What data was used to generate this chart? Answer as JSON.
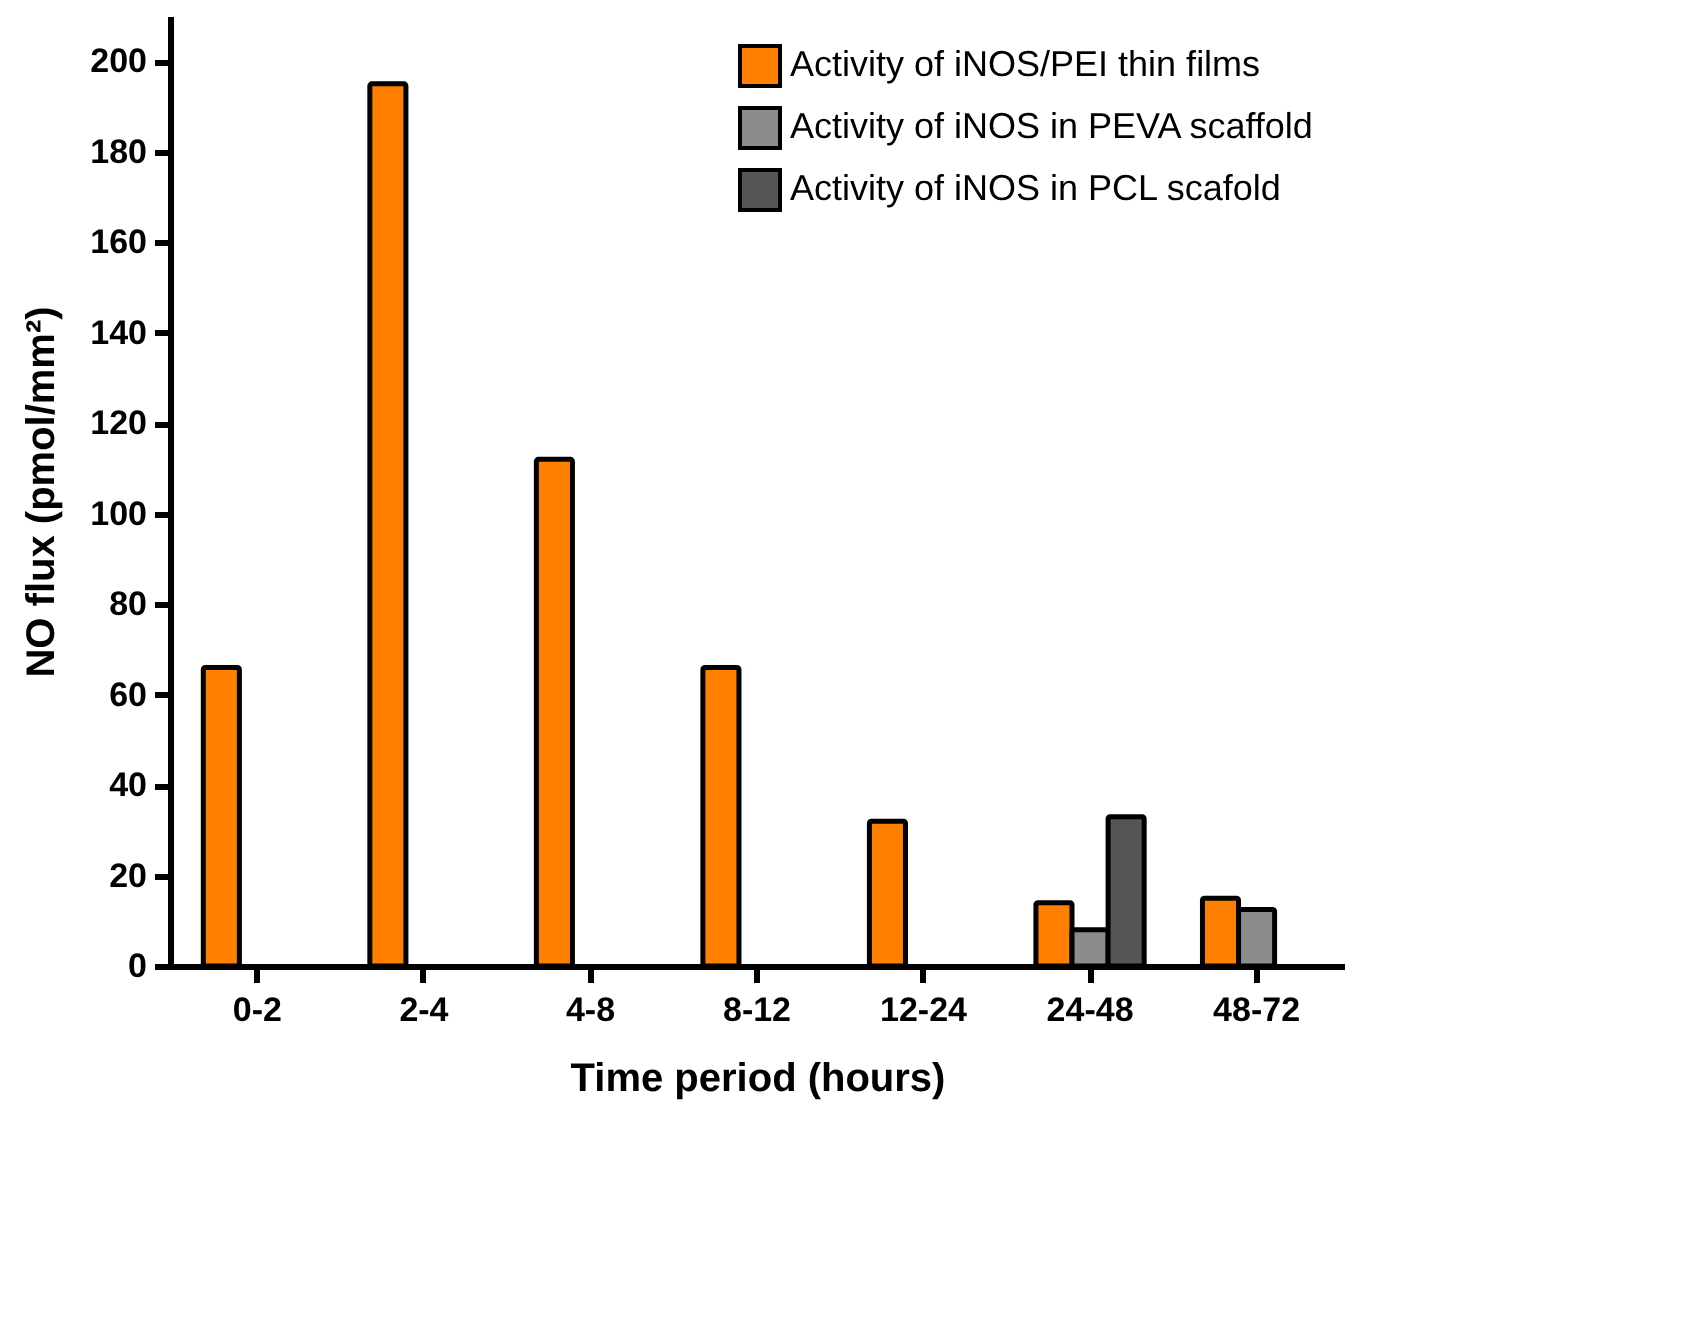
{
  "chart_data": {
    "type": "bar",
    "xlabel": "Time period (hours)",
    "ylabel": "NO flux (pmol/mm²)",
    "categories": [
      "0-2",
      "2-4",
      "4-8",
      "8-12",
      "12-24",
      "24-48",
      "48-72"
    ],
    "series": [
      {
        "name": "Activity of iNOS/PEI thin films",
        "color": "#ff8000",
        "values": [
          66,
          195,
          112,
          66,
          32,
          14,
          15
        ]
      },
      {
        "name": "Activity of iNOS in PEVA scaffold",
        "color": "#8c8c8c",
        "values": [
          null,
          null,
          null,
          null,
          null,
          8,
          12.5
        ]
      },
      {
        "name": "Activity of iNOS in PCL scafold",
        "color": "#555555",
        "values": [
          null,
          null,
          null,
          null,
          null,
          33,
          null
        ]
      }
    ],
    "ylim": [
      0,
      210
    ],
    "yticks": [
      0,
      20,
      40,
      60,
      80,
      100,
      120,
      140,
      160,
      180,
      200
    ],
    "grid": false,
    "legend": "top right"
  }
}
